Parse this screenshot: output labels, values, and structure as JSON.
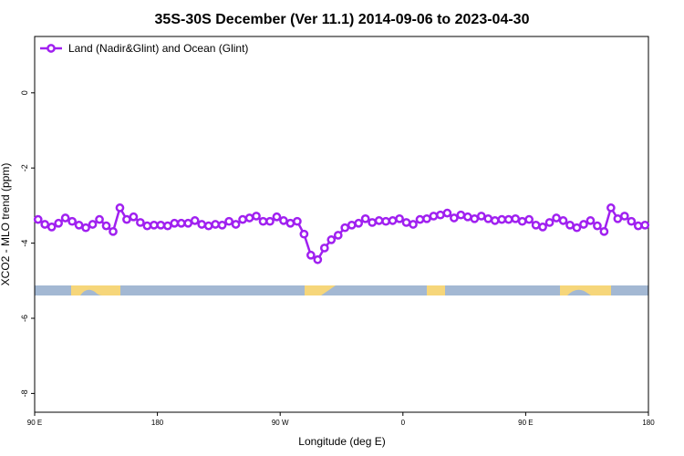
{
  "chart_data": {
    "type": "line",
    "title": "35S-30S December (Ver 11.1)   2014-09-06 to 2023-04-30",
    "x_label": "Longitude (deg E)",
    "y_label": "XCO2 - MLO trend (ppm)",
    "xlim": [
      90,
      540
    ],
    "ylim": [
      -8.5,
      1.5
    ],
    "xticks": [
      {
        "value": 90,
        "label": "90 E"
      },
      {
        "value": 180,
        "label": "180"
      },
      {
        "value": 270,
        "label": "90 W"
      },
      {
        "value": 360,
        "label": "0"
      },
      {
        "value": 450,
        "label": "90 E"
      },
      {
        "value": 540,
        "label": "180"
      }
    ],
    "yticks": [
      0,
      -2,
      -4,
      -6,
      -8
    ],
    "legend": "top-left",
    "x": [
      92.5,
      97.5,
      102.5,
      107.5,
      112.5,
      117.5,
      122.5,
      127.5,
      132.5,
      137.5,
      142.5,
      147.5,
      152.5,
      157.5,
      162.5,
      167.5,
      172.5,
      177.5,
      182.5,
      187.5,
      192.5,
      197.5,
      202.5,
      207.5,
      212.5,
      217.5,
      222.5,
      227.5,
      232.5,
      237.5,
      242.5,
      247.5,
      252.5,
      257.5,
      262.5,
      267.5,
      272.5,
      277.5,
      282.5,
      287.5,
      292.5,
      297.5,
      302.5,
      307.5,
      312.5,
      317.5,
      322.5,
      327.5,
      332.5,
      337.5,
      342.5,
      347.5,
      352.5,
      357.5,
      362.5,
      367.5,
      372.5,
      377.5,
      382.5,
      387.5,
      392.5,
      397.5,
      402.5,
      407.5,
      412.5,
      417.5,
      422.5,
      427.5,
      432.5,
      437.5,
      442.5,
      447.5,
      452.5,
      457.5,
      462.5,
      467.5,
      472.5,
      477.5,
      482.5,
      487.5,
      492.5,
      497.5,
      502.5,
      507.5,
      512.5,
      517.5,
      522.5,
      527.5,
      532.5,
      537.5
    ],
    "series": [
      {
        "name": "Land (Nadir&Glint) and Ocean (Glint)",
        "color": "#a020f0",
        "values": [
          -3.37,
          -3.5,
          -3.57,
          -3.47,
          -3.33,
          -3.42,
          -3.52,
          -3.59,
          -3.5,
          -3.37,
          -3.54,
          -3.69,
          -3.06,
          -3.37,
          -3.3,
          -3.45,
          -3.54,
          -3.52,
          -3.52,
          -3.54,
          -3.47,
          -3.47,
          -3.47,
          -3.4,
          -3.5,
          -3.54,
          -3.5,
          -3.52,
          -3.42,
          -3.5,
          -3.37,
          -3.33,
          -3.28,
          -3.42,
          -3.42,
          -3.3,
          -3.4,
          -3.47,
          -3.42,
          -3.76,
          -4.32,
          -4.44,
          -4.13,
          -3.91,
          -3.79,
          -3.59,
          -3.52,
          -3.47,
          -3.35,
          -3.45,
          -3.4,
          -3.42,
          -3.4,
          -3.35,
          -3.45,
          -3.5,
          -3.37,
          -3.35,
          -3.28,
          -3.25,
          -3.2,
          -3.33,
          -3.25,
          -3.3,
          -3.35,
          -3.28,
          -3.35,
          -3.4,
          -3.37,
          -3.37,
          -3.35,
          -3.42,
          -3.37,
          -3.52,
          -3.57,
          -3.45,
          -3.33,
          -3.4,
          -3.52,
          -3.59,
          -3.5,
          -3.4,
          -3.54,
          -3.69,
          -3.06,
          -3.35,
          -3.28,
          -3.42,
          -3.54,
          -3.52
        ]
      }
    ]
  }
}
